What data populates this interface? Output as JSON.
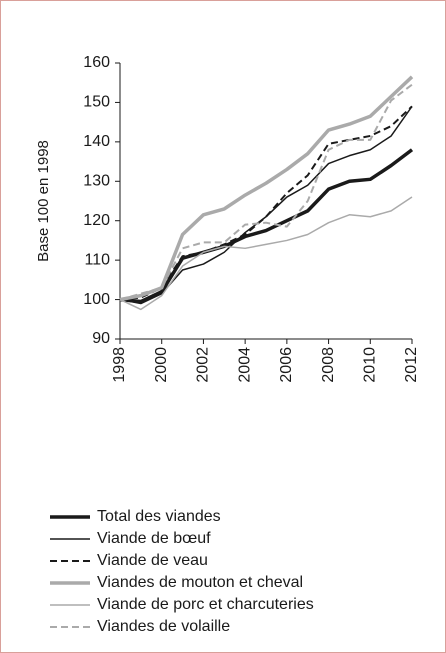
{
  "chart_data": {
    "type": "line",
    "ylabel": "Base 100 en 1998",
    "x": [
      1998,
      1999,
      2000,
      2001,
      2002,
      2003,
      2004,
      2005,
      2006,
      2007,
      2008,
      2009,
      2010,
      2011,
      2012
    ],
    "xlim": [
      1998,
      2012
    ],
    "xticks": [
      1998,
      2000,
      2002,
      2004,
      2006,
      2008,
      2010,
      2012
    ],
    "ylim": [
      90,
      160
    ],
    "yticks": [
      90,
      100,
      110,
      120,
      130,
      140,
      150,
      160
    ],
    "grid": false,
    "legend": "bottom",
    "series": [
      {
        "name": "Total des viandes",
        "color": "#1a1a1a",
        "width": 3.5,
        "dash": false,
        "values": [
          100,
          99.5,
          102,
          110.5,
          112,
          113.5,
          116,
          117.5,
          120,
          122.5,
          128,
          130,
          130.5,
          134,
          138
        ]
      },
      {
        "name": "Viande de bœuf",
        "color": "#1a1a1a",
        "width": 1.5,
        "dash": false,
        "values": [
          100,
          99,
          101.5,
          107.5,
          109,
          112,
          117,
          121,
          126,
          129,
          134.5,
          136.5,
          138,
          141.5,
          149
        ]
      },
      {
        "name": "Viande de veau",
        "color": "#1a1a1a",
        "width": 2,
        "dash": true,
        "values": [
          100,
          100.5,
          103,
          111,
          112,
          114,
          116.5,
          121,
          127,
          131.5,
          139.5,
          140.5,
          141.5,
          144,
          149
        ]
      },
      {
        "name": "Viandes de mouton et cheval",
        "color": "#aaaaaa",
        "width": 3.5,
        "dash": false,
        "values": [
          100,
          101,
          103,
          116.5,
          121.5,
          123,
          126.5,
          129.5,
          133,
          137,
          143,
          144.5,
          146.5,
          151.5,
          156.5
        ]
      },
      {
        "name": "Viande de porc et charcuteries",
        "color": "#aaaaaa",
        "width": 1.5,
        "dash": false,
        "values": [
          100,
          97.5,
          101,
          108.5,
          112,
          113.5,
          113,
          114,
          115,
          116.5,
          119.5,
          121.5,
          121,
          122.5,
          126
        ]
      },
      {
        "name": "Viandes de volaille",
        "color": "#aaaaaa",
        "width": 2,
        "dash": true,
        "values": [
          100,
          101.5,
          103,
          113,
          114.5,
          114.5,
          119,
          119.5,
          118.5,
          125,
          138,
          140.5,
          140.5,
          150.5,
          154.5
        ]
      }
    ]
  }
}
